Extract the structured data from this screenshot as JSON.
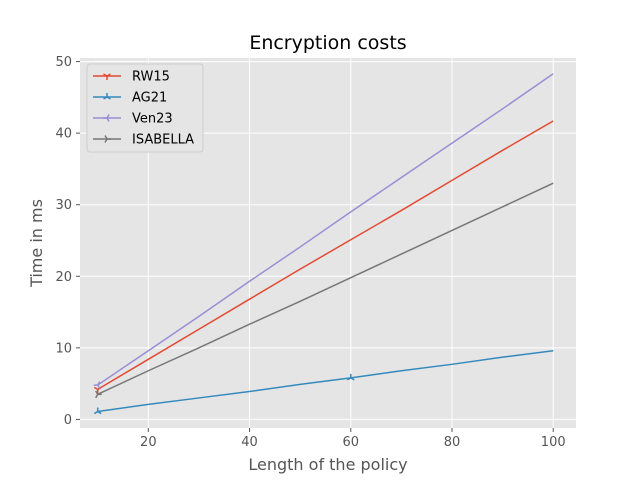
{
  "chart_data": {
    "type": "line",
    "title": "Encryption costs",
    "xlabel": "Length of the policy",
    "ylabel": "Time in ms",
    "xlim": [
      6.5,
      104.5
    ],
    "ylim": [
      -1.2,
      50.5
    ],
    "xticks": [
      20,
      40,
      60,
      80,
      100
    ],
    "yticks": [
      0,
      10,
      20,
      30,
      40,
      50
    ],
    "grid": true,
    "legend_position": "top-left",
    "x": [
      10,
      20,
      30,
      40,
      50,
      60,
      70,
      80,
      90,
      100
    ],
    "series": [
      {
        "name": "RW15",
        "color": "#E24A33",
        "marker": "1",
        "values": [
          4.2,
          8.4,
          12.6,
          16.8,
          21.0,
          25.1,
          29.2,
          33.4,
          37.6,
          41.7
        ]
      },
      {
        "name": "AG21",
        "color": "#348ABD",
        "marker": "2",
        "values": [
          1.1,
          2.1,
          3.0,
          3.9,
          4.9,
          5.8,
          6.8,
          7.7,
          8.7,
          9.6
        ]
      },
      {
        "name": "Ven23",
        "color": "#988ED5",
        "marker": "3",
        "values": [
          4.8,
          9.6,
          14.4,
          19.3,
          24.1,
          29.0,
          33.8,
          38.6,
          43.4,
          48.3
        ]
      },
      {
        "name": "ISABELLA",
        "color": "#777777",
        "marker": "4",
        "values": [
          3.5,
          6.8,
          10.0,
          13.3,
          16.5,
          19.8,
          23.1,
          26.4,
          29.7,
          33.0
        ]
      }
    ]
  }
}
